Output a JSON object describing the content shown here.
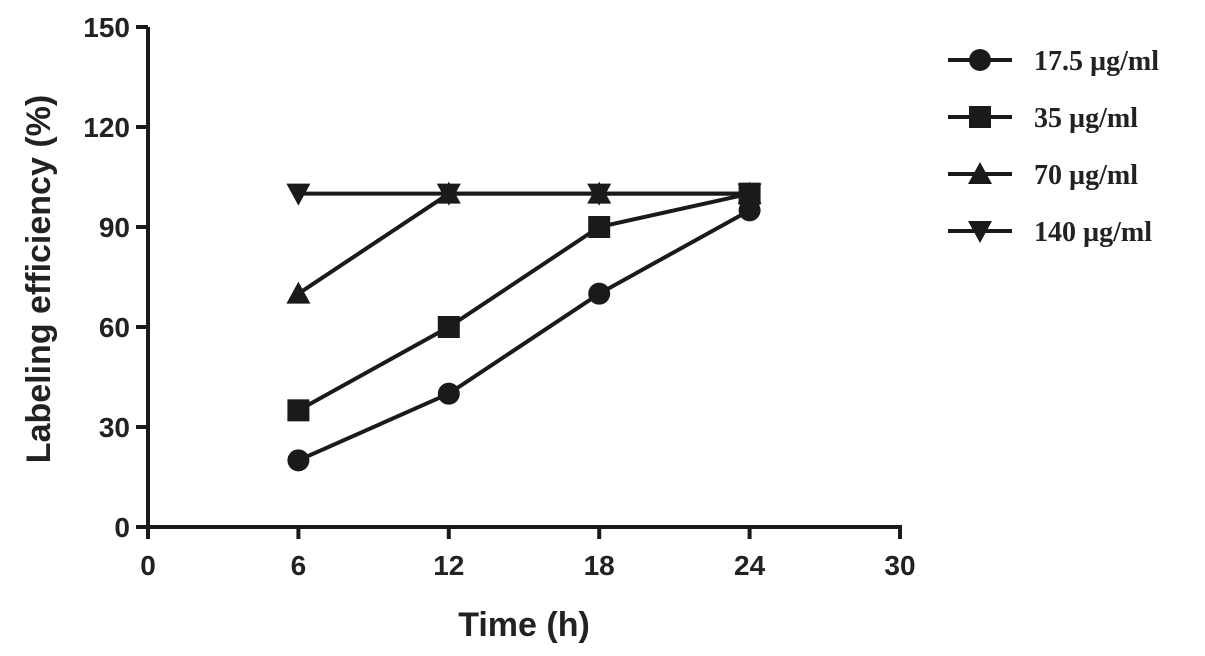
{
  "chart_data": {
    "type": "line",
    "xlabel": "Time (h)",
    "ylabel": "Labeling efficiency (%)",
    "xlim": [
      0,
      30
    ],
    "ylim": [
      0,
      150
    ],
    "xticks": [
      0,
      6,
      12,
      18,
      24,
      30
    ],
    "yticks": [
      0,
      30,
      60,
      90,
      120,
      150
    ],
    "x": [
      6,
      12,
      18,
      24
    ],
    "grid": false,
    "legend_position": "right",
    "series": [
      {
        "name": "17.5 µg/ml",
        "marker": "circle",
        "values": [
          20,
          40,
          70,
          95
        ]
      },
      {
        "name": "35 µg/ml",
        "marker": "square",
        "values": [
          35,
          60,
          90,
          100
        ]
      },
      {
        "name": "70 µg/ml",
        "marker": "triangle-up",
        "values": [
          70,
          100,
          100,
          100
        ]
      },
      {
        "name": "140 µg/ml",
        "marker": "triangle-down",
        "values": [
          100,
          100,
          100,
          100
        ]
      }
    ],
    "line_color": "#1a1a1a"
  }
}
